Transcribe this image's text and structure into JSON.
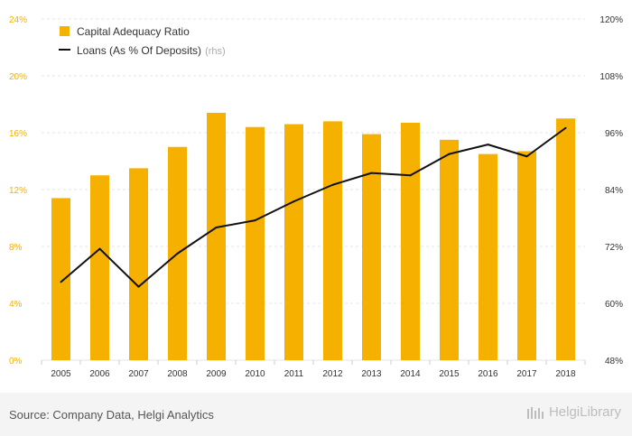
{
  "colors": {
    "bar": "#f5b000",
    "line": "#111111",
    "axis_left_text": "#f5b000",
    "axis_right_text": "#333333",
    "grid": "#e6e6e6"
  },
  "chart_data": {
    "type": "bar",
    "categories": [
      "2005",
      "2006",
      "2007",
      "2008",
      "2009",
      "2010",
      "2011",
      "2012",
      "2013",
      "2014",
      "2015",
      "2016",
      "2017",
      "2018"
    ],
    "series": [
      {
        "name": "Capital Adequacy Ratio",
        "type": "bar",
        "axis": "left",
        "values": [
          11.4,
          13.0,
          13.5,
          15.0,
          17.4,
          16.4,
          16.6,
          16.8,
          15.9,
          16.7,
          15.5,
          14.5,
          14.7,
          17.0
        ]
      },
      {
        "name": "Loans (As % Of Deposits)",
        "suffix": "(rhs)",
        "type": "line",
        "axis": "right",
        "values": [
          64.5,
          71.5,
          63.5,
          70.5,
          76.0,
          77.5,
          81.5,
          85.0,
          87.5,
          87.0,
          91.5,
          93.5,
          91.0,
          97.0
        ]
      }
    ],
    "y_left": {
      "min": 0,
      "max": 24,
      "ticks": [
        "0%",
        "4%",
        "8%",
        "12%",
        "16%",
        "20%",
        "24%"
      ]
    },
    "y_right": {
      "min": 48,
      "max": 120,
      "ticks": [
        "48%",
        "60%",
        "72%",
        "84%",
        "96%",
        "108%",
        "120%"
      ]
    },
    "legend_position": "top-left"
  },
  "footer": {
    "source": "Source: Company Data, Helgi Analytics",
    "logo_text": "HelgiLibrary"
  }
}
